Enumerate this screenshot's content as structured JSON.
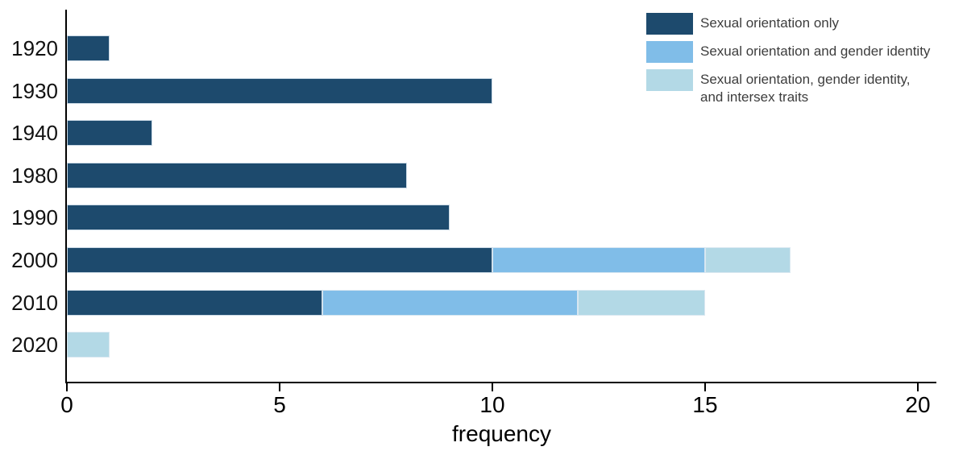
{
  "chart_data": {
    "type": "bar",
    "orientation": "horizontal",
    "stacked": true,
    "title": "",
    "xlabel": "frequency",
    "ylabel": "",
    "categories": [
      "1920",
      "1930",
      "1940",
      "1980",
      "1990",
      "2000",
      "2010",
      "2020"
    ],
    "series": [
      {
        "name": "Sexual orientation only",
        "color": "#1d4a6d",
        "values": [
          1,
          10,
          2,
          8,
          9,
          10,
          6,
          0
        ]
      },
      {
        "name": "Sexual orientation and gender identity",
        "color": "#80bde8",
        "values": [
          0,
          0,
          0,
          0,
          0,
          5,
          6,
          0
        ]
      },
      {
        "name": "Sexual orientation, gender identity,\nand intersex traits",
        "color": "#b3d9e6",
        "values": [
          0,
          0,
          0,
          0,
          0,
          2,
          3,
          1
        ]
      }
    ],
    "x_ticks": [
      0,
      5,
      10,
      15,
      20
    ],
    "xlim": [
      0,
      20.5
    ],
    "grid": false,
    "legend_position": "top-right",
    "axis_color": "#000000",
    "legend_text_color": "#3d3d3d"
  }
}
